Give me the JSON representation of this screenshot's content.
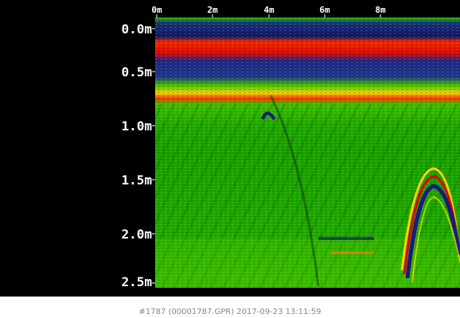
{
  "x_axis": {
    "ticks": [
      "0m",
      "2m",
      "4m",
      "6m",
      "8m"
    ]
  },
  "y_axis": {
    "ticks": [
      "0.0m",
      "0.5m",
      "1.0m",
      "1.5m",
      "2.0m",
      "2.5m"
    ]
  },
  "caption": "#1787 (00001787.GPR) 2017-09-23 13:11:59"
}
